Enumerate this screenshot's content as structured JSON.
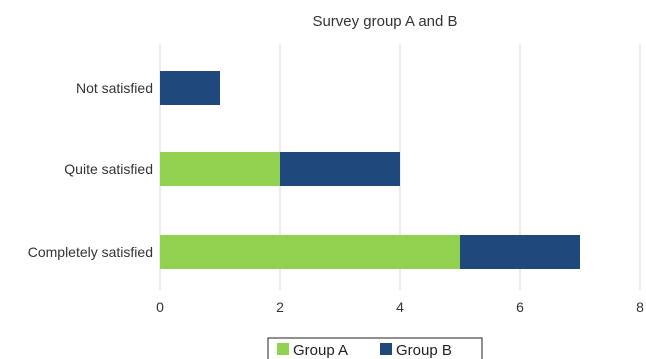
{
  "chart_data": {
    "type": "bar",
    "orientation": "horizontal",
    "stacked": true,
    "title": "Survey group A and B",
    "categories": [
      "Not satisfied",
      "Quite satisfied",
      "Completely satisfied"
    ],
    "series": [
      {
        "name": "Group A",
        "color": "#92d050",
        "values": [
          0,
          2,
          5
        ]
      },
      {
        "name": "Group B",
        "color": "#1f497d",
        "values": [
          1,
          2,
          2
        ]
      }
    ],
    "xlim": [
      0,
      8
    ],
    "xticks": [
      0,
      2,
      4,
      6,
      8
    ],
    "grid": true,
    "legend_position": "bottom"
  }
}
